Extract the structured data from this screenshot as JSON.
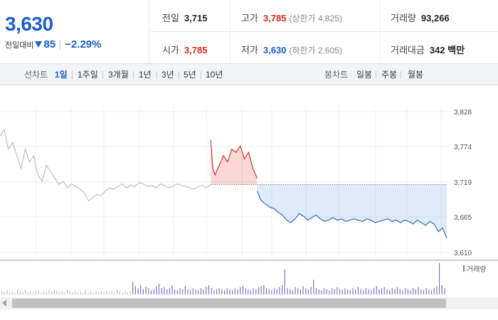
{
  "quote": {
    "price": "3,630",
    "change_label": "전일대비",
    "change_amount": "85",
    "change_percent": "−2.29%",
    "prev_close_label": "전일",
    "prev_close": "3,715",
    "high_label": "고가",
    "high": "3,785",
    "upper_limit": "(상한가 4,825)",
    "volume_label": "거래량",
    "volume": "93,266",
    "open_label": "시가",
    "open": "3,785",
    "low_label": "저가",
    "low": "3,630",
    "lower_limit": "(하한가 2,605)",
    "value_label": "거래대금",
    "value": "342 백만",
    "colors": {
      "up": "#e0261a",
      "down": "#1a5fc9"
    }
  },
  "tabs": {
    "line_label": "선차트",
    "line_periods": [
      "1일",
      "1주일",
      "3개월",
      "1년",
      "3년",
      "5년",
      "10년"
    ],
    "active": "1일",
    "candle_label": "봉차트",
    "candle_periods": [
      "일봉",
      "주봉",
      "월봉"
    ]
  },
  "chart_data": {
    "type": "line",
    "y_ticks": [
      "3,828",
      "3,774",
      "3,719",
      "3,665",
      "3,610"
    ],
    "ylim": [
      3610,
      3828
    ],
    "reference_price": 3715,
    "volume_legend": "거래량",
    "series": [
      {
        "name": "",
        "color": "#bbbbbb",
        "x": [
          0,
          2,
          4,
          6,
          8,
          10,
          12,
          14,
          16,
          18,
          20,
          22,
          24,
          26,
          28,
          30,
          32,
          34,
          36,
          38,
          40,
          42,
          44,
          46,
          48,
          50,
          52,
          54,
          56,
          58,
          60,
          62,
          64,
          66,
          68,
          70,
          72,
          74,
          76,
          78,
          80,
          82,
          84,
          86,
          88,
          90,
          92,
          94,
          96,
          98,
          100
        ],
        "values": [
          3790,
          3800,
          3770,
          3780,
          3760,
          3740,
          3770,
          3750,
          3760,
          3730,
          3720,
          3745,
          3735,
          3725,
          3715,
          3720,
          3710,
          3716,
          3712,
          3708,
          3702,
          3690,
          3695,
          3700,
          3698,
          3705,
          3710,
          3708,
          3712,
          3716,
          3710,
          3714,
          3712,
          3718,
          3716,
          3712,
          3714,
          3710,
          3716,
          3714,
          3710,
          3712,
          3716,
          3714,
          3712,
          3710,
          3708,
          3712,
          3714,
          3710,
          3715
        ]
      },
      {
        "name": "",
        "color": "#e0261a",
        "x": [
          100,
          101,
          102,
          104,
          106,
          108,
          110,
          112,
          114,
          116,
          118,
          120,
          122
        ],
        "values": [
          3785,
          3740,
          3730,
          3745,
          3760,
          3750,
          3770,
          3765,
          3775,
          3755,
          3765,
          3740,
          3725
        ]
      },
      {
        "name": "",
        "color": "#1a5fc9",
        "x": [
          122,
          124,
          126,
          128,
          130,
          132,
          134,
          136,
          138,
          140,
          142,
          144,
          146,
          148,
          150,
          152,
          154,
          156,
          158,
          160,
          162,
          164,
          166,
          168,
          170,
          172,
          174,
          176,
          178,
          180,
          182,
          184,
          186,
          188,
          190,
          192,
          194,
          196,
          198,
          200,
          202,
          204,
          206,
          208,
          210,
          212
        ],
        "values": [
          3705,
          3690,
          3685,
          3680,
          3678,
          3672,
          3668,
          3660,
          3656,
          3662,
          3670,
          3666,
          3660,
          3664,
          3668,
          3662,
          3658,
          3660,
          3664,
          3660,
          3662,
          3658,
          3660,
          3662,
          3660,
          3658,
          3662,
          3660,
          3656,
          3658,
          3660,
          3662,
          3658,
          3660,
          3656,
          3660,
          3658,
          3654,
          3660,
          3656,
          3652,
          3658,
          3654,
          3642,
          3648,
          3632
        ]
      }
    ],
    "volume": [
      3,
      2,
      4,
      2,
      3,
      2,
      5,
      3,
      2,
      4,
      2,
      3,
      2,
      3,
      4,
      2,
      3,
      2,
      4,
      3,
      5,
      3,
      2,
      3,
      2,
      4,
      3,
      2,
      3,
      2,
      3,
      2,
      4,
      2,
      3,
      2,
      3,
      2,
      3,
      2,
      3,
      2,
      3,
      2,
      4,
      3,
      2,
      3,
      2,
      3,
      12,
      8,
      6,
      9,
      5,
      7,
      6,
      4,
      5,
      8,
      10,
      6,
      7,
      5,
      6,
      9,
      5,
      4,
      6,
      5,
      8,
      5,
      4,
      6,
      5,
      4,
      6,
      5,
      7,
      9,
      6,
      4,
      5,
      6,
      5,
      4,
      6,
      5,
      4,
      6,
      5,
      7,
      8,
      6,
      5,
      4,
      6,
      5,
      7,
      8,
      9,
      6,
      5,
      4,
      6,
      5,
      7,
      9,
      24,
      6,
      5,
      4,
      7,
      6,
      5,
      8,
      6,
      5,
      7,
      14,
      6,
      5,
      4,
      6,
      5,
      4,
      6,
      5,
      7,
      5,
      4,
      6,
      5,
      4,
      6,
      5,
      7,
      5,
      4,
      6,
      5,
      4,
      6,
      8,
      5,
      6,
      7,
      5,
      4,
      6,
      5,
      7,
      5,
      4,
      6,
      5,
      4,
      6,
      5,
      7,
      5,
      4,
      6,
      5,
      4,
      6,
      8,
      30,
      9,
      6
    ]
  }
}
